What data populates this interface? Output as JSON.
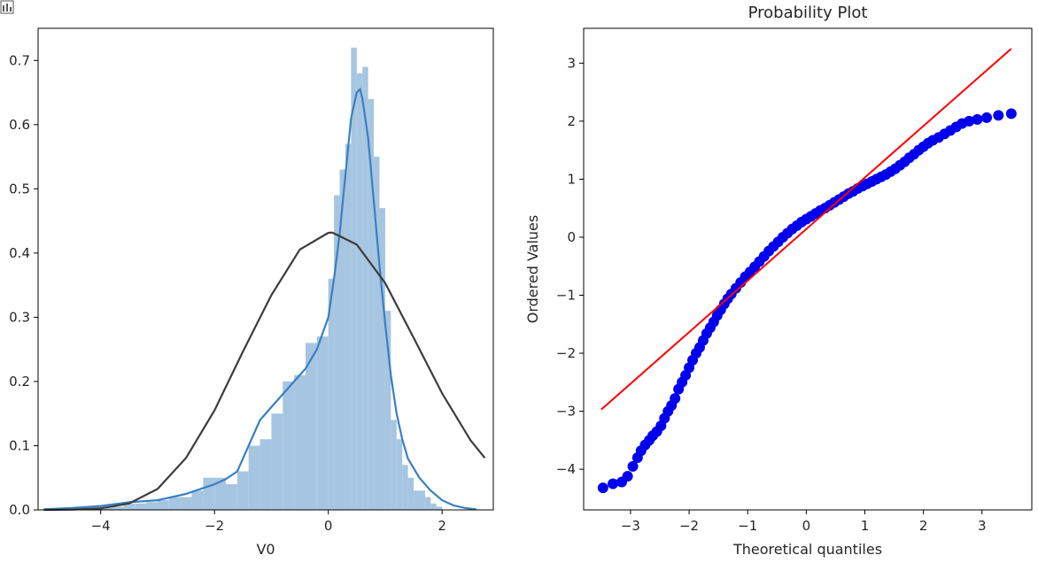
{
  "chart_data": [
    {
      "type": "histogram",
      "title": "",
      "xlabel": "V0",
      "ylabel": "",
      "xlim": [
        -5.1,
        2.9
      ],
      "ylim": [
        0,
        0.75
      ],
      "xticks": [
        -4,
        -2,
        0,
        2
      ],
      "xtick_labels": [
        "−4",
        "−2",
        "0",
        "2"
      ],
      "yticks": [
        0.0,
        0.1,
        0.2,
        0.3,
        0.4,
        0.5,
        0.6,
        0.7
      ],
      "ytick_labels": [
        "0.0",
        "0.1",
        "0.2",
        "0.3",
        "0.4",
        "0.5",
        "0.6",
        "0.7"
      ],
      "bar_color": "#a6c5e0",
      "bins": [
        {
          "x0": -4.4,
          "x1": -4.2,
          "y": 0.005
        },
        {
          "x0": -4.2,
          "x1": -4.0,
          "y": 0.005
        },
        {
          "x0": -4.0,
          "x1": -3.8,
          "y": 0.005
        },
        {
          "x0": -3.8,
          "x1": -3.6,
          "y": 0.005
        },
        {
          "x0": -3.6,
          "x1": -3.4,
          "y": 0.01
        },
        {
          "x0": -3.4,
          "x1": -3.2,
          "y": 0.01
        },
        {
          "x0": -3.2,
          "x1": -3.0,
          "y": 0.012
        },
        {
          "x0": -3.0,
          "x1": -2.8,
          "y": 0.015
        },
        {
          "x0": -2.8,
          "x1": -2.6,
          "y": 0.02
        },
        {
          "x0": -2.6,
          "x1": -2.4,
          "y": 0.02
        },
        {
          "x0": -2.4,
          "x1": -2.2,
          "y": 0.03
        },
        {
          "x0": -2.2,
          "x1": -2.0,
          "y": 0.05
        },
        {
          "x0": -2.0,
          "x1": -1.8,
          "y": 0.05
        },
        {
          "x0": -1.8,
          "x1": -1.6,
          "y": 0.04
        },
        {
          "x0": -1.6,
          "x1": -1.4,
          "y": 0.06
        },
        {
          "x0": -1.4,
          "x1": -1.2,
          "y": 0.1
        },
        {
          "x0": -1.2,
          "x1": -1.0,
          "y": 0.11
        },
        {
          "x0": -1.0,
          "x1": -0.8,
          "y": 0.15
        },
        {
          "x0": -0.8,
          "x1": -0.6,
          "y": 0.2
        },
        {
          "x0": -0.6,
          "x1": -0.4,
          "y": 0.21
        },
        {
          "x0": -0.4,
          "x1": -0.2,
          "y": 0.26
        },
        {
          "x0": -0.2,
          "x1": 0.0,
          "y": 0.27
        },
        {
          "x0": 0.0,
          "x1": 0.1,
          "y": 0.36
        },
        {
          "x0": 0.1,
          "x1": 0.2,
          "y": 0.49
        },
        {
          "x0": 0.2,
          "x1": 0.3,
          "y": 0.53
        },
        {
          "x0": 0.3,
          "x1": 0.4,
          "y": 0.57
        },
        {
          "x0": 0.4,
          "x1": 0.5,
          "y": 0.72
        },
        {
          "x0": 0.5,
          "x1": 0.6,
          "y": 0.68
        },
        {
          "x0": 0.6,
          "x1": 0.7,
          "y": 0.69
        },
        {
          "x0": 0.7,
          "x1": 0.8,
          "y": 0.64
        },
        {
          "x0": 0.8,
          "x1": 0.9,
          "y": 0.55
        },
        {
          "x0": 0.9,
          "x1": 1.0,
          "y": 0.47
        },
        {
          "x0": 1.0,
          "x1": 1.1,
          "y": 0.31
        },
        {
          "x0": 1.1,
          "x1": 1.2,
          "y": 0.14
        },
        {
          "x0": 1.2,
          "x1": 1.3,
          "y": 0.11
        },
        {
          "x0": 1.3,
          "x1": 1.4,
          "y": 0.07
        },
        {
          "x0": 1.4,
          "x1": 1.5,
          "y": 0.05
        },
        {
          "x0": 1.5,
          "x1": 1.6,
          "y": 0.03
        },
        {
          "x0": 1.6,
          "x1": 1.7,
          "y": 0.03
        },
        {
          "x0": 1.7,
          "x1": 1.8,
          "y": 0.02
        },
        {
          "x0": 1.8,
          "x1": 1.9,
          "y": 0.01
        },
        {
          "x0": 1.9,
          "x1": 2.0,
          "y": 0.005
        }
      ],
      "series": [
        {
          "kind": "line",
          "color": "#3a7fc2",
          "x": [
            -5.0,
            -4.5,
            -4.0,
            -3.5,
            -3.0,
            -2.5,
            -2.0,
            -1.8,
            -1.6,
            -1.4,
            -1.2,
            -1.0,
            -0.8,
            -0.6,
            -0.4,
            -0.2,
            0.0,
            0.1,
            0.2,
            0.3,
            0.4,
            0.5,
            0.56,
            0.6,
            0.7,
            0.8,
            0.9,
            1.0,
            1.1,
            1.2,
            1.3,
            1.4,
            1.6,
            1.8,
            2.0,
            2.2,
            2.4,
            2.6
          ],
          "y": [
            0.001,
            0.003,
            0.006,
            0.012,
            0.015,
            0.025,
            0.04,
            0.048,
            0.06,
            0.1,
            0.14,
            0.16,
            0.18,
            0.2,
            0.22,
            0.25,
            0.3,
            0.36,
            0.43,
            0.52,
            0.61,
            0.65,
            0.655,
            0.64,
            0.58,
            0.48,
            0.38,
            0.29,
            0.21,
            0.15,
            0.11,
            0.08,
            0.05,
            0.03,
            0.015,
            0.007,
            0.003,
            0.001
          ]
        },
        {
          "kind": "line",
          "color": "#3c3c3c",
          "x": [
            -5.0,
            -4.5,
            -4.0,
            -3.5,
            -3.0,
            -2.5,
            -2.0,
            -1.5,
            -1.0,
            -0.5,
            0.0,
            0.07,
            0.5,
            1.0,
            1.5,
            2.0,
            2.5,
            2.75
          ],
          "y": [
            0.0,
            0.0004,
            0.0024,
            0.0101,
            0.0326,
            0.0808,
            0.155,
            0.2466,
            0.3345,
            0.4055,
            0.4315,
            0.432,
            0.4133,
            0.3534,
            0.2681,
            0.1814,
            0.1084,
            0.0809
          ]
        }
      ]
    },
    {
      "type": "scatter",
      "title": "Probability Plot",
      "xlabel": "Theoretical quantiles",
      "ylabel": "Ordered Values",
      "xlim": [
        -3.8,
        3.85
      ],
      "ylim": [
        -4.7,
        3.6
      ],
      "xticks": [
        -3,
        -2,
        -1,
        0,
        1,
        2,
        3
      ],
      "xtick_labels": [
        "−3",
        "−2",
        "−1",
        "0",
        "1",
        "2",
        "3"
      ],
      "yticks": [
        -4,
        -3,
        -2,
        -1,
        0,
        1,
        2,
        3
      ],
      "ytick_labels": [
        "−4",
        "−3",
        "−2",
        "−1",
        "0",
        "1",
        "2",
        "3"
      ],
      "points_color": "#0000ee",
      "points": [
        [
          -3.47,
          -4.32
        ],
        [
          -3.3,
          -4.25
        ],
        [
          -3.15,
          -4.22
        ],
        [
          -3.05,
          -4.12
        ],
        [
          -2.96,
          -3.95
        ],
        [
          -2.88,
          -3.8
        ],
        [
          -2.82,
          -3.68
        ],
        [
          -2.75,
          -3.58
        ],
        [
          -2.68,
          -3.5
        ],
        [
          -2.62,
          -3.42
        ],
        [
          -2.55,
          -3.35
        ],
        [
          -2.48,
          -3.25
        ],
        [
          -2.42,
          -3.12
        ],
        [
          -2.36,
          -3.0
        ],
        [
          -2.3,
          -2.9
        ],
        [
          -2.24,
          -2.78
        ],
        [
          -2.18,
          -2.62
        ],
        [
          -2.12,
          -2.5
        ],
        [
          -2.06,
          -2.38
        ],
        [
          -2.0,
          -2.25
        ],
        [
          -1.94,
          -2.12
        ],
        [
          -1.88,
          -2.0
        ],
        [
          -1.82,
          -1.9
        ],
        [
          -1.76,
          -1.78
        ],
        [
          -1.7,
          -1.66
        ],
        [
          -1.64,
          -1.56
        ],
        [
          -1.58,
          -1.46
        ],
        [
          -1.52,
          -1.35
        ],
        [
          -1.46,
          -1.25
        ],
        [
          -1.4,
          -1.15
        ],
        [
          -1.34,
          -1.06
        ],
        [
          -1.28,
          -0.98
        ],
        [
          -1.2,
          -0.88
        ],
        [
          -1.12,
          -0.78
        ],
        [
          -1.04,
          -0.68
        ],
        [
          -0.96,
          -0.6
        ],
        [
          -0.88,
          -0.51
        ],
        [
          -0.8,
          -0.42
        ],
        [
          -0.72,
          -0.33
        ],
        [
          -0.64,
          -0.24
        ],
        [
          -0.56,
          -0.16
        ],
        [
          -0.48,
          -0.08
        ],
        [
          -0.4,
          0.0
        ],
        [
          -0.32,
          0.07
        ],
        [
          -0.24,
          0.14
        ],
        [
          -0.16,
          0.2
        ],
        [
          -0.08,
          0.26
        ],
        [
          0.0,
          0.31
        ],
        [
          0.08,
          0.36
        ],
        [
          0.16,
          0.41
        ],
        [
          0.24,
          0.46
        ],
        [
          0.32,
          0.5
        ],
        [
          0.4,
          0.55
        ],
        [
          0.48,
          0.6
        ],
        [
          0.56,
          0.65
        ],
        [
          0.64,
          0.7
        ],
        [
          0.72,
          0.75
        ],
        [
          0.8,
          0.79
        ],
        [
          0.88,
          0.84
        ],
        [
          0.96,
          0.88
        ],
        [
          1.04,
          0.92
        ],
        [
          1.12,
          0.96
        ],
        [
          1.2,
          1.0
        ],
        [
          1.28,
          1.04
        ],
        [
          1.36,
          1.08
        ],
        [
          1.44,
          1.13
        ],
        [
          1.52,
          1.18
        ],
        [
          1.6,
          1.24
        ],
        [
          1.68,
          1.3
        ],
        [
          1.76,
          1.37
        ],
        [
          1.84,
          1.43
        ],
        [
          1.92,
          1.5
        ],
        [
          2.0,
          1.56
        ],
        [
          2.08,
          1.62
        ],
        [
          2.16,
          1.67
        ],
        [
          2.26,
          1.72
        ],
        [
          2.36,
          1.78
        ],
        [
          2.46,
          1.84
        ],
        [
          2.56,
          1.9
        ],
        [
          2.66,
          1.96
        ],
        [
          2.78,
          2.0
        ],
        [
          2.92,
          2.03
        ],
        [
          3.08,
          2.06
        ],
        [
          3.28,
          2.1
        ],
        [
          3.5,
          2.13
        ]
      ],
      "fit_line": {
        "color": "#ff0000",
        "x": [
          -3.5,
          3.5
        ],
        "y": [
          -2.97,
          3.25
        ]
      }
    }
  ]
}
